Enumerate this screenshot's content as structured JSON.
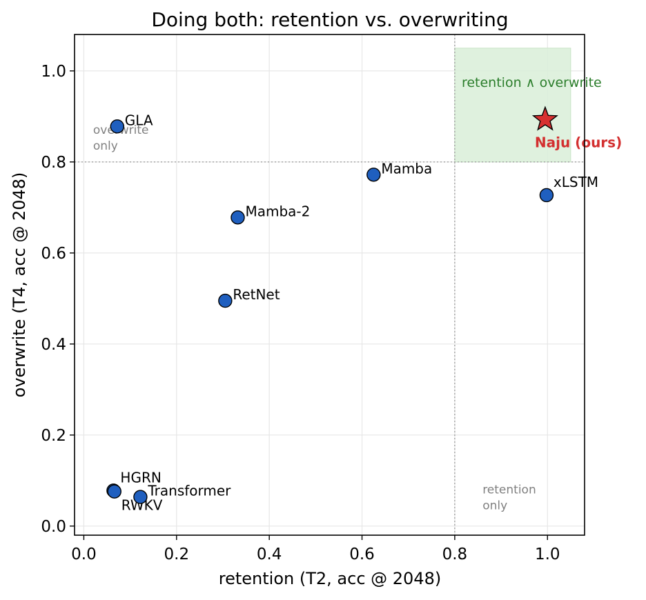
{
  "chart_data": {
    "type": "scatter",
    "title": "Doing both: retention vs. overwriting",
    "xlabel": "retention  (T2, acc @ 2048)",
    "ylabel": "overwrite  (T4, acc @ 2048)",
    "xlim": [
      -0.02,
      1.08
    ],
    "ylim": [
      -0.02,
      1.08
    ],
    "xticks": [
      0.0,
      0.2,
      0.4,
      0.6,
      0.8,
      1.0
    ],
    "yticks": [
      0.0,
      0.2,
      0.4,
      0.6,
      0.8,
      1.0
    ],
    "xtick_labels": [
      "0.0",
      "0.2",
      "0.4",
      "0.6",
      "0.8",
      "1.0"
    ],
    "ytick_labels": [
      "0.0",
      "0.2",
      "0.4",
      "0.6",
      "0.8",
      "1.0"
    ],
    "grid": true,
    "thresholds": {
      "x": 0.8,
      "y": 0.8
    },
    "highlight_region": {
      "x": [
        0.8,
        1.05
      ],
      "y": [
        0.8,
        1.05
      ],
      "label": "retention ∧ overwrite"
    },
    "annotations": [
      {
        "text": [
          "overwrite",
          "only"
        ],
        "x": 0.02,
        "y": 0.83
      },
      {
        "text": [
          "retention",
          "only"
        ],
        "x": 0.86,
        "y": 0.04
      }
    ],
    "points": [
      {
        "label": "GLA",
        "x": 0.072,
        "y": 0.878,
        "label_pos": "right"
      },
      {
        "label": "Mamba",
        "x": 0.625,
        "y": 0.772,
        "label_pos": "right"
      },
      {
        "label": "xLSTM",
        "x": 0.998,
        "y": 0.727,
        "label_pos": "above-right"
      },
      {
        "label": "Mamba-2",
        "x": 0.332,
        "y": 0.678,
        "label_pos": "right"
      },
      {
        "label": "RetNet",
        "x": 0.305,
        "y": 0.495,
        "label_pos": "right"
      },
      {
        "label": "HGRN",
        "x": 0.064,
        "y": 0.078,
        "label_pos": "above-right"
      },
      {
        "label": "RWKV",
        "x": 0.066,
        "y": 0.076,
        "label_pos": "below-right"
      },
      {
        "label": "Transformer",
        "x": 0.122,
        "y": 0.064,
        "label_pos": "right"
      }
    ],
    "ours": {
      "label": "Naju (ours)",
      "x": 0.995,
      "y": 0.893,
      "marker": "star"
    },
    "colors": {
      "point_fill": "#1f5fbf",
      "ours_fill": "#d73030",
      "ours_label": "#d32f2f",
      "zone_fill": "#d9eed8",
      "zone_label": "#2a7d2a",
      "note": "#808080"
    }
  }
}
